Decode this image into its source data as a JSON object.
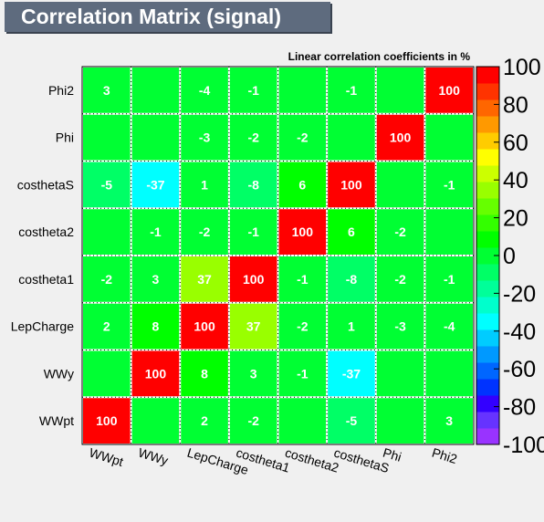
{
  "title": "Correlation Matrix (signal)",
  "chart_data": {
    "type": "heatmap",
    "title": "Correlation Matrix (signal)",
    "subtitle": "Linear correlation coefficients in %",
    "x_labels": [
      "WWpt",
      "WWy",
      "LepCharge",
      "costheta1",
      "costheta2",
      "costhetaS",
      "Phi",
      "Phi2"
    ],
    "y_labels": [
      "WWpt",
      "WWy",
      "LepCharge",
      "costheta1",
      "costheta2",
      "costhetaS",
      "Phi",
      "Phi2"
    ],
    "values": [
      [
        100,
        0,
        2,
        -2,
        0,
        -5,
        0,
        3
      ],
      [
        0,
        100,
        8,
        3,
        -1,
        -37,
        0,
        0
      ],
      [
        2,
        8,
        100,
        37,
        -2,
        1,
        -3,
        -4
      ],
      [
        -2,
        3,
        37,
        100,
        -1,
        -8,
        -2,
        -1
      ],
      [
        0,
        -1,
        -2,
        -1,
        100,
        6,
        -2,
        0
      ],
      [
        -5,
        -37,
        1,
        -8,
        6,
        100,
        0,
        -1
      ],
      [
        0,
        0,
        -3,
        -2,
        -2,
        0,
        100,
        0
      ],
      [
        3,
        0,
        -4,
        -1,
        0,
        -1,
        0,
        100
      ]
    ],
    "zlim": [
      -100,
      100
    ],
    "colorbar_ticks": [
      "100",
      "80",
      "60",
      "40",
      "20",
      "0",
      "-20",
      "-40",
      "-60",
      "-80",
      "-100"
    ],
    "colors": {
      "palette": [
        "#9933ff",
        "#6633ff",
        "#3300ff",
        "#0033ff",
        "#0066ff",
        "#0099ff",
        "#00ccff",
        "#00ffff",
        "#00ffcc",
        "#00ff99",
        "#00ff66",
        "#00ff33",
        "#00ff00",
        "#33ff00",
        "#66ff00",
        "#99ff00",
        "#ccff00",
        "#ffff00",
        "#ffcc00",
        "#ff9900",
        "#ff6600",
        "#ff3300",
        "#ff0000"
      ]
    },
    "grid": true
  }
}
